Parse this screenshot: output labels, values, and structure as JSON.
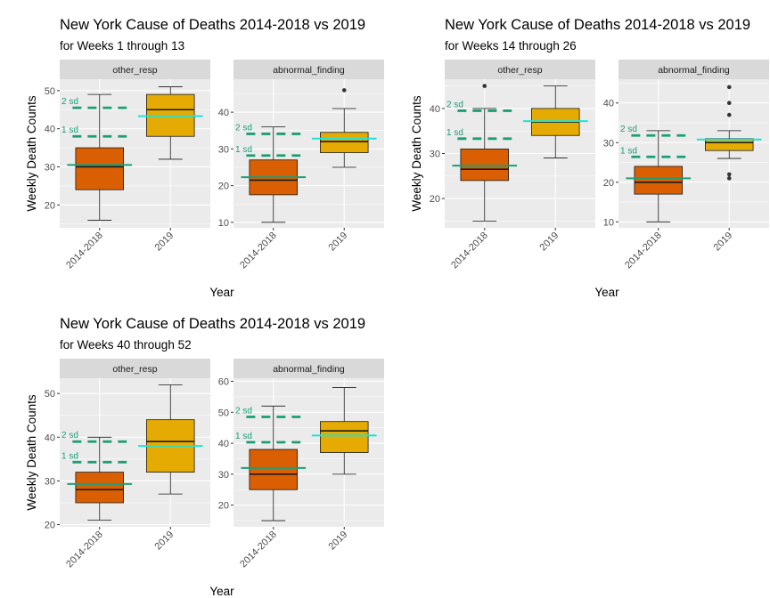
{
  "colors": {
    "panel_bg": "#ebebeb",
    "strip_bg": "#d9d9d9",
    "grid": "#ffffff",
    "box_2014": "#d95f02",
    "box_2019": "#e6ab02",
    "mean_2014": "#1b9e77",
    "mean_2019": "#1ee3d4",
    "sd_lines": "#1b9e77",
    "axis_text": "#4d4d4d"
  },
  "chart_data": [
    {
      "type": "boxplot",
      "title": "New York Cause of Deaths  2014-2018 vs 2019",
      "subtitle": "for Weeks 1 through 13",
      "xlabel": "Year",
      "ylabel": "Weekly Death Counts",
      "facets": [
        {
          "strip": "other_resp",
          "ylim": [
            14,
            53
          ],
          "yticks": [
            20,
            30,
            40,
            50
          ],
          "categories": [
            "2014-2018",
            "2019"
          ],
          "boxes": [
            {
              "min": 16,
              "q1": 24,
              "median": 30,
              "q3": 35,
              "max": 49,
              "mean": 30.5,
              "outliers": []
            },
            {
              "min": 32,
              "q1": 38,
              "median": 45,
              "q3": 49,
              "max": 51,
              "mean": 43.3,
              "outliers": []
            }
          ],
          "sd_lines": [
            {
              "label": "1 sd",
              "value": 38
            },
            {
              "label": "2 sd",
              "value": 45.5
            }
          ]
        },
        {
          "strip": "abnormal_finding",
          "ylim": [
            8.5,
            49
          ],
          "yticks": [
            10,
            20,
            30,
            40
          ],
          "categories": [
            "2014-2018",
            "2019"
          ],
          "boxes": [
            {
              "min": 10,
              "q1": 17.5,
              "median": 21.5,
              "q3": 27,
              "max": 36,
              "mean": 22.3,
              "outliers": []
            },
            {
              "min": 25,
              "q1": 29,
              "median": 32,
              "q3": 34.5,
              "max": 41,
              "mean": 32.8,
              "outliers": [
                46
              ]
            }
          ],
          "sd_lines": [
            {
              "label": "1 sd",
              "value": 28.2
            },
            {
              "label": "2 sd",
              "value": 34.1
            }
          ]
        }
      ]
    },
    {
      "type": "boxplot",
      "title": "New York Cause of Deaths  2014-2018 vs 2019",
      "subtitle": "for Weeks 14 through 26",
      "xlabel": "Year",
      "ylabel": "Weekly Death Counts",
      "facets": [
        {
          "strip": "other_resp",
          "ylim": [
            13.5,
            46.5
          ],
          "yticks": [
            20,
            30,
            40
          ],
          "categories": [
            "2014-2018",
            "2019"
          ],
          "boxes": [
            {
              "min": 15,
              "q1": 24,
              "median": 26.5,
              "q3": 31,
              "max": 40,
              "mean": 27.3,
              "outliers": [
                45
              ]
            },
            {
              "min": 29,
              "q1": 34,
              "median": 37,
              "q3": 40,
              "max": 45,
              "mean": 37.2,
              "outliers": []
            }
          ],
          "sd_lines": [
            {
              "label": "1 sd",
              "value": 33.3
            },
            {
              "label": "2 sd",
              "value": 39.5
            }
          ]
        },
        {
          "strip": "abnormal_finding",
          "ylim": [
            8.5,
            46
          ],
          "yticks": [
            10,
            20,
            30,
            40
          ],
          "categories": [
            "2014-2018",
            "2019"
          ],
          "boxes": [
            {
              "min": 10,
              "q1": 17,
              "median": 20,
              "q3": 24,
              "max": 33,
              "mean": 21,
              "outliers": []
            },
            {
              "min": 26,
              "q1": 28,
              "median": 30,
              "q3": 31,
              "max": 33,
              "mean": 30.8,
              "outliers": [
                21,
                22,
                37,
                40,
                44
              ]
            }
          ],
          "sd_lines": [
            {
              "label": "1 sd",
              "value": 26.4
            },
            {
              "label": "2 sd",
              "value": 31.8
            }
          ]
        }
      ]
    },
    {
      "type": "boxplot",
      "title": "New York Cause of Deaths  2014-2018 vs 2019",
      "subtitle": "for Weeks 40 through 52",
      "xlabel": "Year",
      "ylabel": "Weekly Death Counts",
      "facets": [
        {
          "strip": "other_resp",
          "ylim": [
            19.5,
            53.5
          ],
          "yticks": [
            20,
            30,
            40,
            50
          ],
          "categories": [
            "2014-2018",
            "2019"
          ],
          "boxes": [
            {
              "min": 21,
              "q1": 25,
              "median": 28,
              "q3": 32,
              "max": 40,
              "mean": 29.3,
              "outliers": []
            },
            {
              "min": 27,
              "q1": 32,
              "median": 39,
              "q3": 44,
              "max": 52,
              "mean": 38,
              "outliers": []
            }
          ],
          "sd_lines": [
            {
              "label": "1 sd",
              "value": 34.3
            },
            {
              "label": "2 sd",
              "value": 39
            }
          ]
        },
        {
          "strip": "abnormal_finding",
          "ylim": [
            13,
            61
          ],
          "yticks": [
            20,
            30,
            40,
            50,
            60
          ],
          "categories": [
            "2014-2018",
            "2019"
          ],
          "boxes": [
            {
              "min": 15,
              "q1": 25,
              "median": 30,
              "q3": 38,
              "max": 52,
              "mean": 32,
              "outliers": []
            },
            {
              "min": 30,
              "q1": 37,
              "median": 44,
              "q3": 47,
              "max": 58,
              "mean": 42.5,
              "outliers": []
            }
          ],
          "sd_lines": [
            {
              "label": "1 sd",
              "value": 40.3
            },
            {
              "label": "2 sd",
              "value": 48.5
            }
          ]
        }
      ]
    }
  ]
}
